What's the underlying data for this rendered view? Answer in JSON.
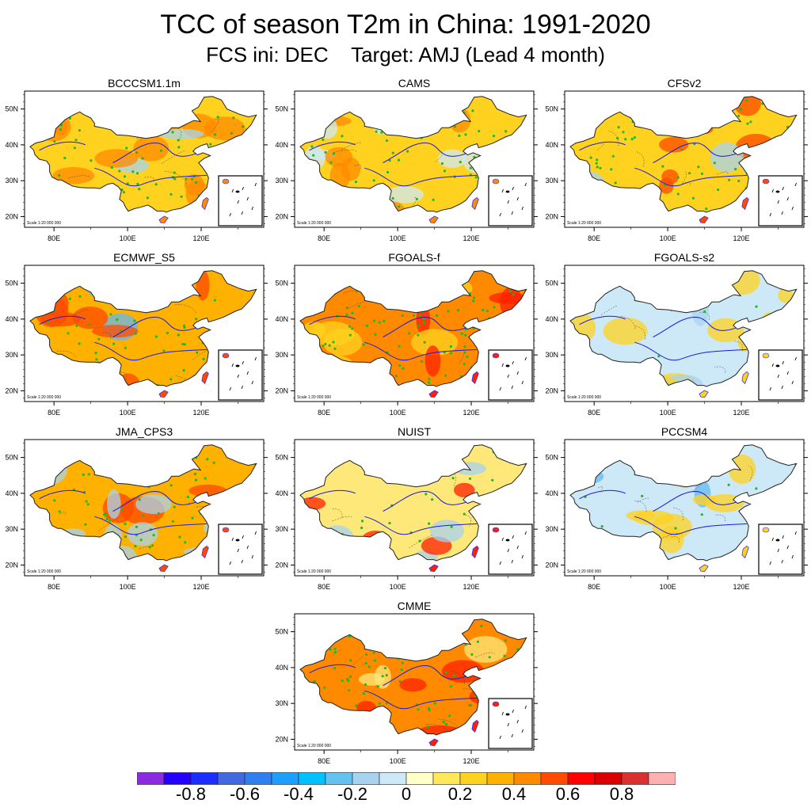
{
  "title": "TCC of season T2m in China: 1991-2020",
  "subtitle": "FCS ini: DEC    Target: AMJ (Lead 4 month)",
  "axis": {
    "lat_labels": [
      "50N",
      "40N",
      "30N",
      "20N"
    ],
    "lon_labels": [
      "80E",
      "100E",
      "120E"
    ],
    "scale_text": "Scale 1:20 000 000"
  },
  "panels": [
    {
      "name": "BCCCSM1.1m",
      "base": "#ffd21f",
      "hi": "#ff8a00",
      "lo": "#a7d3f0",
      "sig": 0.7
    },
    {
      "name": "CAMS",
      "base": "#ffd21f",
      "hi": "#ff8a00",
      "lo": "#cde9f7",
      "sig": 0.5
    },
    {
      "name": "CFSv2",
      "base": "#ffd21f",
      "hi": "#ff4a00",
      "lo": "#a7d3f0",
      "sig": 0.65
    },
    {
      "name": "ECMWF_S5",
      "base": "#ffb100",
      "hi": "#ff4a00",
      "lo": "#64b8f0",
      "sig": 0.6
    },
    {
      "name": "FGOALS-f",
      "base": "#ff8a00",
      "hi": "#ff2000",
      "lo": "#ffd21f",
      "sig": 0.85
    },
    {
      "name": "FGOALS-s2",
      "base": "#cde9f7",
      "hi": "#ffd21f",
      "lo": "#a7d3f0",
      "sig": 0.05
    },
    {
      "name": "JMA_CPS3",
      "base": "#ffb100",
      "hi": "#ff4a00",
      "lo": "#a7d3f0",
      "sig": 0.65
    },
    {
      "name": "NUIST",
      "base": "#ffe87a",
      "hi": "#ff2000",
      "lo": "#a7d3f0",
      "sig": 0.35
    },
    {
      "name": "PCCSM4",
      "base": "#cde9f7",
      "hi": "#ffd21f",
      "lo": "#64b8f0",
      "sig": 0.1
    },
    {
      "name": "CMME",
      "base": "#ff8a00",
      "hi": "#ff2000",
      "lo": "#ffe87a",
      "sig": 0.9
    }
  ],
  "colorbar": {
    "colors": [
      "#8a2be2",
      "#2400ff",
      "#1a2eff",
      "#4169e1",
      "#2f7ff0",
      "#1e9eff",
      "#00c0ff",
      "#64c2f0",
      "#a7d3f0",
      "#cde9f7",
      "#ffffc8",
      "#ffe85a",
      "#ffd21f",
      "#ffb100",
      "#ff8a00",
      "#ff4a00",
      "#ff0000",
      "#d90000",
      "#d93030",
      "#ffb0b0"
    ],
    "labels": [
      "-0.8",
      "-0.6",
      "-0.4",
      "-0.2",
      "0",
      "0.2",
      "0.4",
      "0.6",
      "0.8"
    ],
    "label_values": [
      -0.8,
      -0.6,
      -0.4,
      -0.2,
      0,
      0.2,
      0.4,
      0.6,
      0.8
    ],
    "range": [
      -1,
      1
    ]
  }
}
